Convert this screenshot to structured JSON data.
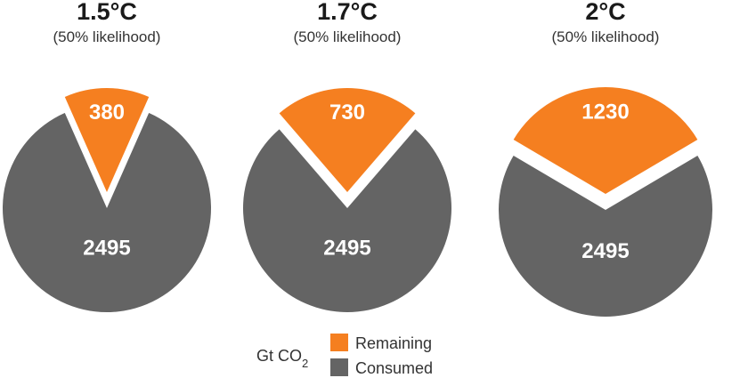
{
  "chart_data": {
    "type": "pie",
    "unit": "Gt CO",
    "unit_subscript": "2",
    "colors": {
      "Remaining": "#f57f20",
      "Consumed": "#646464"
    },
    "charts": [
      {
        "title": "1.5°C",
        "subtitle": "(50% likelihood)",
        "values": [
          {
            "label": "Remaining",
            "value": 380
          },
          {
            "label": "Consumed",
            "value": 2495
          }
        ]
      },
      {
        "title": "1.7°C",
        "subtitle": "(50% likelihood)",
        "values": [
          {
            "label": "Remaining",
            "value": 730
          },
          {
            "label": "Consumed",
            "value": 2495
          }
        ]
      },
      {
        "title": "2°C",
        "subtitle": "(50% likelihood)",
        "values": [
          {
            "label": "Remaining",
            "value": 1230
          },
          {
            "label": "Consumed",
            "value": 2495
          }
        ]
      }
    ],
    "legend": {
      "entries": [
        "Remaining",
        "Consumed"
      ],
      "position": "bottom-center"
    }
  }
}
